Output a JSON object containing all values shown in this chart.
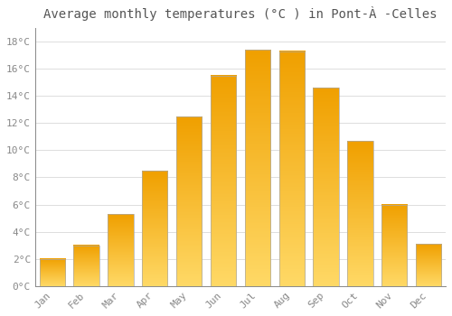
{
  "title": "Average monthly temperatures (°C ) in Pont-À -Celles",
  "months": [
    "Jan",
    "Feb",
    "Mar",
    "Apr",
    "May",
    "Jun",
    "Jul",
    "Aug",
    "Sep",
    "Oct",
    "Nov",
    "Dec"
  ],
  "values": [
    2.0,
    3.0,
    5.3,
    8.5,
    12.5,
    15.5,
    17.4,
    17.3,
    14.6,
    10.7,
    6.0,
    3.1
  ],
  "bar_color_bottom": "#FFD966",
  "bar_color_top": "#F0A000",
  "ylim": [
    0,
    19
  ],
  "yticks": [
    0,
    2,
    4,
    6,
    8,
    10,
    12,
    14,
    16,
    18
  ],
  "ytick_labels": [
    "0°C",
    "2°C",
    "4°C",
    "6°C",
    "8°C",
    "10°C",
    "12°C",
    "14°C",
    "16°C",
    "18°C"
  ],
  "background_color": "#FFFFFF",
  "grid_color": "#DDDDDD",
  "title_fontsize": 10,
  "tick_fontsize": 8,
  "font_family": "monospace",
  "bar_width": 0.75,
  "bar_edge_color": "#AAAAAA",
  "bar_edge_width": 0.5
}
